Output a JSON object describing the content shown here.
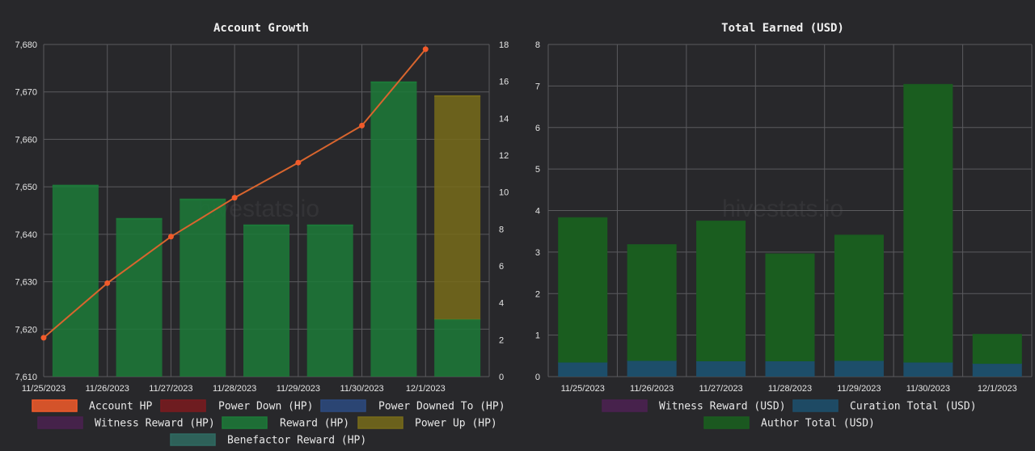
{
  "colors": {
    "account_hp": "#f25a2a",
    "account_hp_line": "#d9652e",
    "power_down": "#7a1a1f",
    "power_downed_to": "#2c4a80",
    "witness_reward": "#4a2150",
    "reward": "#1c7a38",
    "power_up": "#776b1a",
    "benefactor_reward": "#2f6b62",
    "curation_total": "#1d4e6a",
    "author_total": "#1a5d1f"
  },
  "watermark": "hivestats.io",
  "chart_data": [
    {
      "type": "bar",
      "title": "Account Growth",
      "categories": [
        "11/25/2023",
        "11/26/2023",
        "11/27/2023",
        "11/28/2023",
        "11/29/2023",
        "11/30/2023",
        "12/1/2023"
      ],
      "left_axis": {
        "ylim": [
          7610,
          7680
        ],
        "ticks": [
          7610,
          7620,
          7630,
          7640,
          7650,
          7660,
          7670,
          7680
        ],
        "tick_labels": [
          "7,610",
          "7,620",
          "7,630",
          "7,640",
          "7,650",
          "7,660",
          "7,670",
          "7,680"
        ]
      },
      "right_axis": {
        "ylim": [
          0,
          18
        ],
        "ticks": [
          0,
          2,
          4,
          6,
          8,
          10,
          12,
          14,
          16,
          18
        ],
        "tick_labels": [
          "0",
          "2",
          "4",
          "6",
          "8",
          "10",
          "12",
          "14",
          "16",
          "18"
        ]
      },
      "grid": true,
      "legend_position": "bottom",
      "series": [
        {
          "name": "Account HP",
          "type": "line",
          "axis": "left",
          "color_key": "account_hp",
          "values": [
            7618.2,
            7629.7,
            7639.5,
            7647.7,
            7655.1,
            7662.9,
            7679.0
          ]
        },
        {
          "name": "Power Down (HP)",
          "type": "bar",
          "axis": "right",
          "color_key": "power_down",
          "values": [
            0,
            0,
            0,
            0,
            0,
            0,
            0
          ]
        },
        {
          "name": "Power Downed To (HP)",
          "type": "bar",
          "axis": "right",
          "color_key": "power_downed_to",
          "values": [
            0,
            0,
            0,
            0,
            0,
            0,
            0
          ]
        },
        {
          "name": "Witness Reward (HP)",
          "type": "bar",
          "axis": "right",
          "color_key": "witness_reward",
          "values": [
            0,
            0,
            0,
            0,
            0,
            0,
            0
          ]
        },
        {
          "name": "Reward (HP)",
          "type": "bar",
          "axis": "right",
          "color_key": "reward",
          "values": [
            10.35,
            8.55,
            9.6,
            8.2,
            8.2,
            15.95,
            3.1
          ]
        },
        {
          "name": "Power Up (HP)",
          "type": "bar",
          "axis": "right",
          "color_key": "power_up",
          "values": [
            0,
            0,
            0,
            0,
            0,
            0,
            12.1
          ]
        },
        {
          "name": "Benefactor Reward (HP)",
          "type": "bar",
          "axis": "right",
          "color_key": "benefactor_reward",
          "values": [
            0,
            0,
            0,
            0,
            0,
            0,
            0
          ]
        }
      ]
    },
    {
      "type": "bar",
      "title": "Total Earned (USD)",
      "categories": [
        "11/25/2023",
        "11/26/2023",
        "11/27/2023",
        "11/28/2023",
        "11/29/2023",
        "11/30/2023",
        "12/1/2023"
      ],
      "left_axis": {
        "ylim": [
          0,
          8
        ],
        "ticks": [
          0,
          1,
          2,
          3,
          4,
          5,
          6,
          7,
          8
        ],
        "tick_labels": [
          "0",
          "1",
          "2",
          "3",
          "4",
          "5",
          "6",
          "7",
          "8"
        ]
      },
      "stacked": true,
      "grid": true,
      "legend_position": "bottom",
      "series": [
        {
          "name": "Witness Reward (USD)",
          "type": "bar",
          "color_key": "witness_reward",
          "values": [
            0,
            0,
            0,
            0,
            0,
            0,
            0
          ]
        },
        {
          "name": "Curation Total (USD)",
          "type": "bar",
          "color_key": "curation_total",
          "values": [
            0.34,
            0.38,
            0.37,
            0.37,
            0.38,
            0.34,
            0.31
          ]
        },
        {
          "name": "Author Total (USD)",
          "type": "bar",
          "color_key": "author_total",
          "values": [
            3.48,
            2.79,
            3.37,
            2.58,
            3.02,
            6.69,
            0.7
          ]
        }
      ]
    }
  ]
}
